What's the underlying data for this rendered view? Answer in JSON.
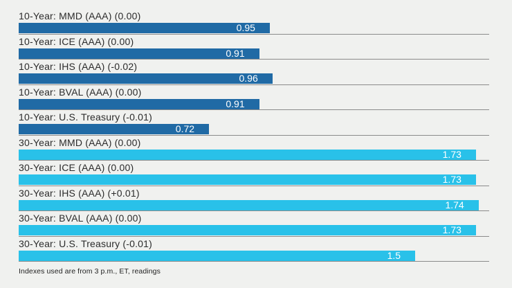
{
  "chart_data": {
    "type": "bar",
    "orientation": "horizontal",
    "title": "",
    "xlabel": "",
    "ylabel": "",
    "xlim": [
      0,
      1.78
    ],
    "grid": false,
    "legend_position": "none",
    "rows": [
      {
        "label": "10-Year: MMD (AAA) (0.00)",
        "value": 0.95,
        "display": "0.95",
        "group": "10-year"
      },
      {
        "label": "10-Year: ICE (AAA) (0.00)",
        "value": 0.91,
        "display": "0.91",
        "group": "10-year"
      },
      {
        "label": "10-Year: IHS (AAA) (-0.02)",
        "value": 0.96,
        "display": "0.96",
        "group": "10-year"
      },
      {
        "label": "10-Year: BVAL (AAA) (0.00)",
        "value": 0.91,
        "display": "0.91",
        "group": "10-year"
      },
      {
        "label": "10-Year: U.S. Treasury (-0.01)",
        "value": 0.72,
        "display": "0.72",
        "group": "10-year"
      },
      {
        "label": "30-Year: MMD (AAA) (0.00)",
        "value": 1.73,
        "display": "1.73",
        "group": "30-year"
      },
      {
        "label": "30-Year: ICE (AAA) (0.00)",
        "value": 1.73,
        "display": "1.73",
        "group": "30-year"
      },
      {
        "label": "30-Year: IHS (AAA) (+0.01)",
        "value": 1.74,
        "display": "1.74",
        "group": "30-year"
      },
      {
        "label": "30-Year: BVAL (AAA) (0.00)",
        "value": 1.73,
        "display": "1.73",
        "group": "30-year"
      },
      {
        "label": "30-Year: U.S. Treasury (-0.01)",
        "value": 1.5,
        "display": "1.5",
        "group": "30-year"
      }
    ]
  },
  "colors": {
    "background": "#F0F1EF",
    "bar_10_year": "#206AA5",
    "bar_30_year": "#29C1E9",
    "separator": "#8A8A8A",
    "label_text": "#2B2B2B",
    "value_text": "#FFFFFF"
  },
  "footnote": "Indexes used are from 3 p.m., ET, readings"
}
